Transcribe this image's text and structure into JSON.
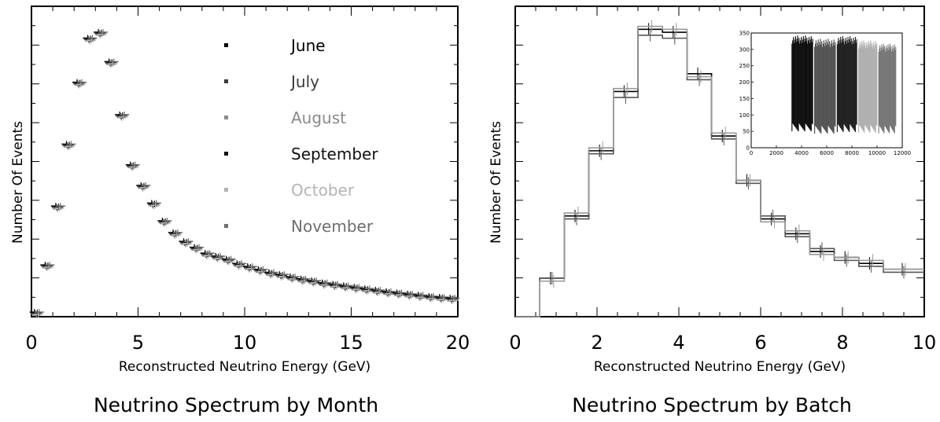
{
  "chart_data": [
    {
      "type": "scatter",
      "caption": "Neutrino Spectrum by Month",
      "title": "",
      "xlabel": "Reconstructed Neutrino Energy (GeV)",
      "ylabel": "Number Of Events",
      "xlim": [
        0,
        20
      ],
      "ylim": [
        0,
        1
      ],
      "x_ticks": [
        "0",
        "5",
        "10",
        "15",
        "20"
      ],
      "legend_position": "top-right",
      "series": [
        {
          "name": "June",
          "color": "#000000"
        },
        {
          "name": "July",
          "color": "#3a3a3a"
        },
        {
          "name": "August",
          "color": "#8a8a8a"
        },
        {
          "name": "September",
          "color": "#111111"
        },
        {
          "name": "October",
          "color": "#b4b4b4"
        },
        {
          "name": "November",
          "color": "#6e6e6e"
        }
      ],
      "x": [
        0.25,
        0.75,
        1.25,
        1.75,
        2.25,
        2.75,
        3.25,
        3.75,
        4.25,
        4.75,
        5.25,
        5.75,
        6.25,
        6.75,
        7.25,
        7.75,
        8.25,
        8.75,
        9.25,
        9.75,
        10.25,
        10.75,
        11.25,
        11.75,
        12.25,
        12.75,
        13.25,
        13.75,
        14.25,
        14.75,
        15.25,
        15.75,
        16.25,
        16.75,
        17.25,
        17.75,
        18.25,
        18.75,
        19.25,
        19.75
      ],
      "values": [
        0.0,
        0.16,
        0.36,
        0.57,
        0.78,
        0.93,
        0.95,
        0.85,
        0.67,
        0.5,
        0.43,
        0.37,
        0.31,
        0.27,
        0.24,
        0.22,
        0.2,
        0.19,
        0.18,
        0.165,
        0.155,
        0.145,
        0.135,
        0.128,
        0.12,
        0.113,
        0.107,
        0.1,
        0.095,
        0.09,
        0.085,
        0.08,
        0.075,
        0.07,
        0.066,
        0.062,
        0.058,
        0.054,
        0.051,
        0.048
      ]
    },
    {
      "type": "line",
      "caption": "Neutrino Spectrum by Batch",
      "title": "",
      "xlabel": "Reconstructed Neutrino Energy (GeV)",
      "ylabel": "Number Of Events",
      "xlim": [
        0,
        10
      ],
      "ylim": [
        0,
        1
      ],
      "x_ticks": [
        "0",
        "2",
        "4",
        "6",
        "8",
        "10"
      ],
      "grid": false,
      "bin_edges": [
        0,
        0.6,
        1.2,
        1.8,
        2.4,
        3.0,
        3.6,
        4.2,
        4.8,
        5.4,
        6.0,
        6.6,
        7.2,
        7.8,
        8.4,
        9.0,
        10.0
      ],
      "series": [
        {
          "color": "#000000",
          "values": [
            0.0,
            0.13,
            0.34,
            0.56,
            0.76,
            0.97,
            0.96,
            0.82,
            0.61,
            0.46,
            0.33,
            0.28,
            0.22,
            0.2,
            0.18,
            0.16
          ]
        },
        {
          "color": "#555555",
          "values": [
            0.0,
            0.13,
            0.33,
            0.55,
            0.74,
            0.95,
            0.94,
            0.8,
            0.6,
            0.45,
            0.34,
            0.27,
            0.23,
            0.19,
            0.17,
            0.15
          ]
        },
        {
          "color": "#999999",
          "values": [
            0.0,
            0.12,
            0.35,
            0.57,
            0.77,
            0.98,
            0.97,
            0.81,
            0.62,
            0.46,
            0.32,
            0.29,
            0.21,
            0.2,
            0.19,
            0.16
          ]
        }
      ],
      "inset": {
        "y_ticks": [
          "0",
          "50",
          "100",
          "150",
          "200",
          "250",
          "300",
          "350"
        ],
        "x_ticks": [
          "0",
          "2000",
          "4000",
          "6000",
          "8000",
          "10000",
          "12000"
        ],
        "ylim": [
          0,
          350
        ],
        "xlim": [
          0,
          12000
        ],
        "bands": [
          {
            "start": 3200,
            "end": 4900,
            "color": "#111111",
            "high": 330,
            "low": 62
          },
          {
            "start": 5000,
            "end": 6700,
            "color": "#555555",
            "high": 320,
            "low": 55
          },
          {
            "start": 6800,
            "end": 8400,
            "color": "#222222",
            "high": 328,
            "low": 60
          },
          {
            "start": 8500,
            "end": 10000,
            "color": "#b0b0b0",
            "high": 315,
            "low": 58
          },
          {
            "start": 10100,
            "end": 11500,
            "color": "#777777",
            "high": 305,
            "low": 56
          }
        ]
      }
    }
  ]
}
